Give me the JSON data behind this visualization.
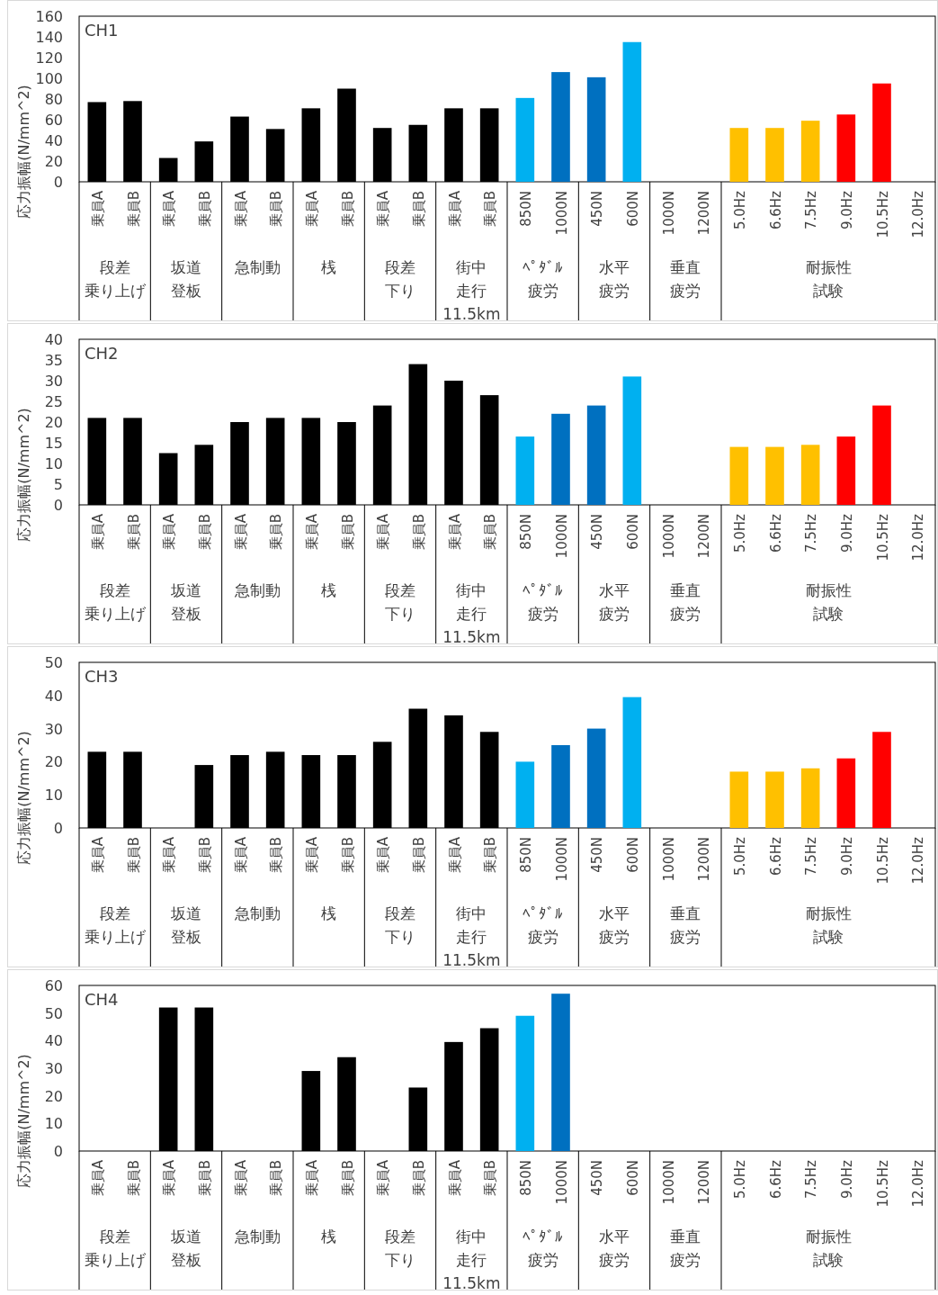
{
  "chart_data": [
    {
      "type": "bar",
      "title": "CH1",
      "ylabel": "応力振幅(N/mm^2)",
      "ylim": [
        0,
        160
      ],
      "yticks": [
        0,
        20,
        40,
        60,
        80,
        100,
        120,
        140,
        160
      ],
      "categories": [
        "乗員A",
        "乗員B",
        "乗員A",
        "乗員B",
        "乗員A",
        "乗員B",
        "乗員A",
        "乗員B",
        "乗員A",
        "乗員B",
        "乗員A",
        "乗員B",
        "850N",
        "1000N",
        "450N",
        "600N",
        "1000N",
        "1200N",
        "5.0Hz",
        "6.6Hz",
        "7.5Hz",
        "9.0Hz",
        "10.5Hz",
        "12.0Hz"
      ],
      "values": [
        77,
        78,
        23,
        39,
        63,
        51,
        71,
        90,
        52,
        55,
        71,
        71,
        81,
        106,
        101,
        135,
        null,
        null,
        52,
        52,
        59,
        65,
        95,
        null
      ],
      "colors": [
        "#000000",
        "#000000",
        "#000000",
        "#000000",
        "#000000",
        "#000000",
        "#000000",
        "#000000",
        "#000000",
        "#000000",
        "#000000",
        "#000000",
        "#00b0f0",
        "#0070c0",
        "#0070c0",
        "#00b0f0",
        null,
        null,
        "#ffc000",
        "#ffc000",
        "#ffc000",
        "#ff0000",
        "#ff0000",
        null
      ],
      "annotations": [
        "段差乗り上げ",
        "坂道登板",
        "急制動",
        "桟",
        "段差下り",
        "街中走行11.5km",
        "ﾍﾟﾀﾞﾙ疲労",
        "水平疲労",
        "垂直疲労",
        "耐振性試験"
      ]
    },
    {
      "type": "bar",
      "title": "CH2",
      "ylabel": "応力振幅(N/mm^2)",
      "ylim": [
        0,
        40
      ],
      "yticks": [
        0,
        5,
        10,
        15,
        20,
        25,
        30,
        35,
        40
      ],
      "categories": [
        "乗員A",
        "乗員B",
        "乗員A",
        "乗員B",
        "乗員A",
        "乗員B",
        "乗員A",
        "乗員B",
        "乗員A",
        "乗員B",
        "乗員A",
        "乗員B",
        "850N",
        "1000N",
        "450N",
        "600N",
        "1000N",
        "1200N",
        "5.0Hz",
        "6.6Hz",
        "7.5Hz",
        "9.0Hz",
        "10.5Hz",
        "12.0Hz"
      ],
      "values": [
        21,
        21,
        12.5,
        14.5,
        20,
        21,
        21,
        20,
        24,
        34,
        30,
        26.5,
        16.5,
        22,
        24,
        31,
        null,
        null,
        14,
        14,
        14.5,
        16.5,
        24,
        null
      ],
      "colors": [
        "#000000",
        "#000000",
        "#000000",
        "#000000",
        "#000000",
        "#000000",
        "#000000",
        "#000000",
        "#000000",
        "#000000",
        "#000000",
        "#000000",
        "#00b0f0",
        "#0070c0",
        "#0070c0",
        "#00b0f0",
        null,
        null,
        "#ffc000",
        "#ffc000",
        "#ffc000",
        "#ff0000",
        "#ff0000",
        null
      ],
      "annotations": [
        "段差乗り上げ",
        "坂道登板",
        "急制動",
        "桟",
        "段差下り",
        "街中走行11.5km",
        "ﾍﾟﾀﾞﾙ疲労",
        "水平疲労",
        "垂直疲労",
        "耐振性試験"
      ]
    },
    {
      "type": "bar",
      "title": "CH3",
      "ylabel": "応力振幅(N/mm^2)",
      "ylim": [
        0,
        50
      ],
      "yticks": [
        0,
        10,
        20,
        30,
        40,
        50
      ],
      "categories": [
        "乗員A",
        "乗員B",
        "乗員A",
        "乗員B",
        "乗員A",
        "乗員B",
        "乗員A",
        "乗員B",
        "乗員A",
        "乗員B",
        "乗員A",
        "乗員B",
        "850N",
        "1000N",
        "450N",
        "600N",
        "1000N",
        "1200N",
        "5.0Hz",
        "6.6Hz",
        "7.5Hz",
        "9.0Hz",
        "10.5Hz",
        "12.0Hz"
      ],
      "values": [
        23,
        23,
        null,
        19,
        22,
        23,
        22,
        22,
        26,
        36,
        34,
        29,
        20,
        25,
        30,
        39.5,
        null,
        null,
        17,
        17,
        18,
        21,
        29,
        null
      ],
      "colors": [
        "#000000",
        "#000000",
        null,
        "#000000",
        "#000000",
        "#000000",
        "#000000",
        "#000000",
        "#000000",
        "#000000",
        "#000000",
        "#000000",
        "#00b0f0",
        "#0070c0",
        "#0070c0",
        "#00b0f0",
        null,
        null,
        "#ffc000",
        "#ffc000",
        "#ffc000",
        "#ff0000",
        "#ff0000",
        null
      ],
      "annotations": [
        "段差乗り上げ",
        "坂道登板",
        "急制動",
        "桟",
        "段差下り",
        "街中走行11.5km",
        "ﾍﾟﾀﾞﾙ疲労",
        "水平疲労",
        "垂直疲労",
        "耐振性試験"
      ]
    },
    {
      "type": "bar",
      "title": "CH4",
      "ylabel": "応力振幅(N/mm^2)",
      "ylim": [
        0,
        60
      ],
      "yticks": [
        0,
        10,
        20,
        30,
        40,
        50,
        60
      ],
      "categories": [
        "乗員A",
        "乗員B",
        "乗員A",
        "乗員B",
        "乗員A",
        "乗員B",
        "乗員A",
        "乗員B",
        "乗員A",
        "乗員B",
        "乗員A",
        "乗員B",
        "850N",
        "1000N",
        "450N",
        "600N",
        "1000N",
        "1200N",
        "5.0Hz",
        "6.6Hz",
        "7.5Hz",
        "9.0Hz",
        "10.5Hz",
        "12.0Hz"
      ],
      "values": [
        null,
        null,
        52,
        52,
        null,
        null,
        29,
        34,
        null,
        23,
        39.5,
        44.5,
        49,
        57,
        null,
        null,
        null,
        null,
        null,
        null,
        null,
        null,
        null,
        null
      ],
      "colors": [
        null,
        null,
        "#000000",
        "#000000",
        null,
        null,
        "#000000",
        "#000000",
        null,
        "#000000",
        "#000000",
        "#000000",
        "#00b0f0",
        "#0070c0",
        null,
        null,
        null,
        null,
        null,
        null,
        null,
        null,
        null,
        null
      ],
      "annotations": [
        "段差乗り上げ",
        "坂道登板",
        "急制動",
        "桟",
        "段差下り",
        "街中走行11.5km",
        "ﾍﾟﾀﾞﾙ疲労",
        "水平疲労",
        "垂直疲労",
        "耐振性試験"
      ]
    }
  ]
}
